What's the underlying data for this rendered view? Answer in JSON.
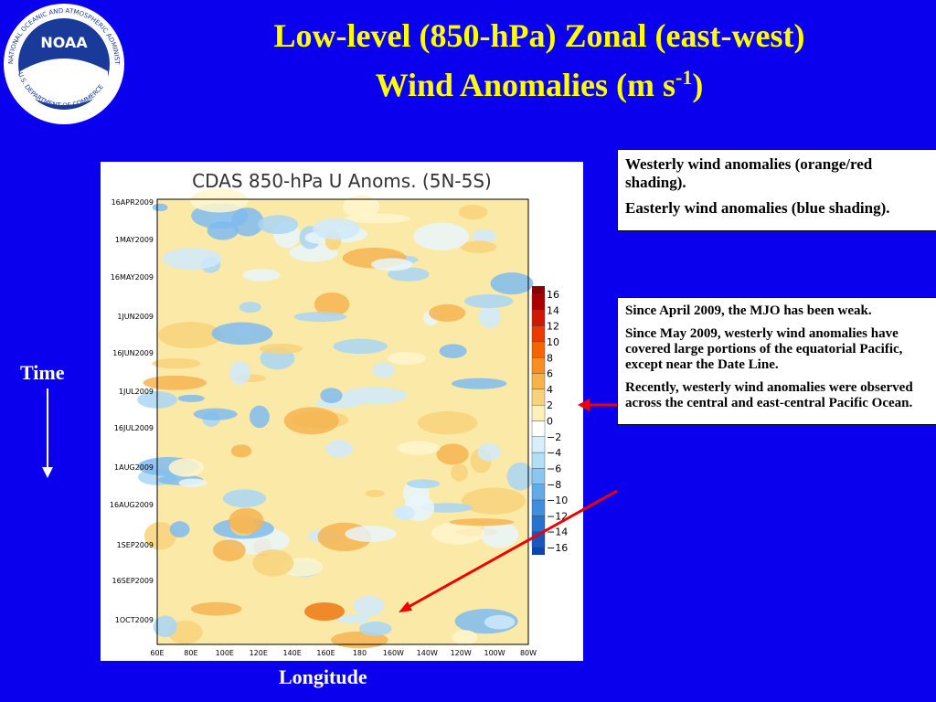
{
  "logo": {
    "name": "NOAA",
    "ring_top": "NATIONAL OCEANIC AND ATMOSPHERIC ADMINISTRATION",
    "ring_bottom": "U.S. DEPARTMENT OF COMMERCE"
  },
  "title": {
    "line1": "Low-level (850-hPa) Zonal (east-west)",
    "line2": "Wind Anomalies (m s",
    "superscript": "-1",
    "line2_end": ")"
  },
  "plot": {
    "title": "CDAS 850-hPa U Anoms. (5N-5S)",
    "dates": [
      "16APR2009",
      "1MAY2009",
      "16MAY2009",
      "1JUN2009",
      "16JUN2009",
      "1JUL2009",
      "16JUL2009",
      "1AUG2009",
      "16AUG2009",
      "1SEP2009",
      "16SEP2009",
      "1OCT2009"
    ],
    "longitudes": [
      "60E",
      "80E",
      "100E",
      "120E",
      "140E",
      "160E",
      "180",
      "160W",
      "140W",
      "120W",
      "100W",
      "80W"
    ],
    "colorbar": [
      "16",
      "14",
      "12",
      "10",
      "8",
      "6",
      "4",
      "2",
      "0",
      "−2",
      "−4",
      "−6",
      "−8",
      "−10",
      "−12",
      "−14",
      "−16"
    ]
  },
  "axis_labels": {
    "time": "Time",
    "longitude": "Longitude"
  },
  "box1": [
    "Westerly wind anomalies (orange/red shading).",
    "Easterly wind anomalies (blue shading)."
  ],
  "box2": [
    "Since April 2009, the MJO has been weak.",
    "Since May 2009, westerly wind anomalies have covered large portions of the equatorial Pacific, except near the Date Line.",
    "Recently, westerly wind anomalies were observed across the central and east-central Pacific Ocean."
  ]
}
